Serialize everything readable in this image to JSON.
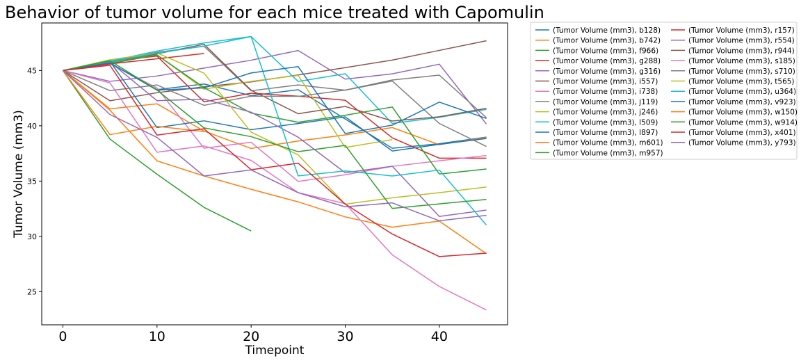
{
  "chart_data": {
    "type": "line",
    "title": "Behavior of tumor volume for each mice treated with Capomulin",
    "xlabel": "Timepoint",
    "ylabel": "Tumor Volume (mm3)",
    "xlim": [
      -2.25,
      47.25
    ],
    "ylim": [
      22.0,
      49.3
    ],
    "xticks": [
      0,
      10,
      20,
      30,
      40
    ],
    "yticks": [
      25,
      30,
      35,
      40,
      45
    ],
    "grid": false,
    "legend_position": "outside-right",
    "x": [
      0,
      5,
      10,
      15,
      20,
      25,
      30,
      35,
      40,
      45
    ],
    "series": [
      {
        "name": "(Tumor Volume (mm3), b128)",
        "color": "#1f77b4",
        "values": [
          45.0,
          45.65,
          43.27,
          43.78,
          42.73,
          43.26,
          40.61,
          37.97,
          38.38,
          38.98
        ]
      },
      {
        "name": "(Tumor Volume (mm3), b742)",
        "color": "#ff7f0e",
        "values": [
          45.0,
          41.53,
          41.99,
          39.52,
          37.95,
          38.62,
          39.17,
          39.84,
          38.29,
          38.94
        ]
      },
      {
        "name": "(Tumor Volume (mm3), f966)",
        "color": "#2ca02c",
        "values": [
          45.0,
          38.8,
          35.62,
          32.62,
          30.49,
          null,
          null,
          null,
          null,
          null
        ]
      },
      {
        "name": "(Tumor Volume (mm3), g288)",
        "color": "#d62728",
        "values": [
          45.0,
          45.84,
          46.3,
          42.17,
          42.95,
          42.68,
          42.31,
          38.91,
          37.07,
          37.07
        ]
      },
      {
        "name": "(Tumor Volume (mm3), g316)",
        "color": "#9467bd",
        "values": [
          45.0,
          44.02,
          44.5,
          45.22,
          45.93,
          46.81,
          44.22,
          44.7,
          45.57,
          40.16
        ]
      },
      {
        "name": "(Tumor Volume (mm3), i557)",
        "color": "#8c564b",
        "values": [
          45.0,
          42.26,
          42.99,
          43.53,
          43.97,
          44.6,
          45.26,
          45.94,
          46.82,
          47.69
        ]
      },
      {
        "name": "(Tumor Volume (mm3), i738)",
        "color": "#e377c2",
        "values": [
          45.0,
          45.6,
          43.42,
          37.97,
          38.51,
          34.97,
          35.57,
          36.33,
          36.84,
          37.31
        ]
      },
      {
        "name": "(Tumor Volume (mm3), j119)",
        "color": "#7f7f7f",
        "values": [
          45.0,
          45.84,
          46.64,
          47.19,
          43.17,
          43.69,
          43.22,
          44.05,
          40.21,
          38.13
        ]
      },
      {
        "name": "(Tumor Volume (mm3), j246)",
        "color": "#bcbd22",
        "values": [
          45.0,
          45.64,
          46.41,
          43.31,
          44.02,
          44.56,
          38.04,
          38.75,
          null,
          null
        ]
      },
      {
        "name": "(Tumor Volume (mm3), l509)",
        "color": "#17becf",
        "values": [
          45.0,
          45.85,
          46.76,
          47.49,
          48.07,
          44.01,
          44.71,
          40.21,
          40.77,
          41.48
        ]
      },
      {
        "name": "(Tumor Volume (mm3), l897)",
        "color": "#1f77b4",
        "values": [
          45.0,
          45.82,
          39.84,
          40.45,
          39.65,
          40.2,
          40.81,
          37.72,
          38.32,
          38.85
        ]
      },
      {
        "name": "(Tumor Volume (mm3), m601)",
        "color": "#ff7f0e",
        "values": [
          45.0,
          41.41,
          36.83,
          35.46,
          34.26,
          33.12,
          31.76,
          30.83,
          31.38,
          28.43
        ]
      },
      {
        "name": "(Tumor Volume (mm3), m957)",
        "color": "#2ca02c",
        "values": [
          45.0,
          45.62,
          46.41,
          43.45,
          41.15,
          40.32,
          40.95,
          41.7,
          35.64,
          36.09
        ]
      },
      {
        "name": "(Tumor Volume (mm3), r157)",
        "color": "#d62728",
        "values": [
          45.0,
          45.6,
          46.06,
          46.54,
          null,
          null,
          null,
          null,
          null,
          null
        ]
      },
      {
        "name": "(Tumor Volume (mm3), r554)",
        "color": "#9467bd",
        "values": [
          45.0,
          45.78,
          42.27,
          42.41,
          41.23,
          38.97,
          35.75,
          36.34,
          31.8,
          32.38
        ]
      },
      {
        "name": "(Tumor Volume (mm3), r944)",
        "color": "#8c564b",
        "values": [
          45.0,
          45.74,
          46.51,
          47.37,
          43.22,
          41.09,
          41.75,
          40.43,
          40.82,
          41.58
        ]
      },
      {
        "name": "(Tumor Volume (mm3), s185)",
        "color": "#e377c2",
        "values": [
          45.0,
          43.88,
          37.61,
          38.18,
          36.87,
          33.95,
          32.96,
          28.33,
          25.47,
          23.34
        ]
      },
      {
        "name": "(Tumor Volume (mm3), s710)",
        "color": "#7f7f7f",
        "values": [
          45.0,
          43.18,
          43.69,
          41.85,
          42.68,
          42.66,
          43.23,
          44.14,
          44.58,
          40.73
        ]
      },
      {
        "name": "(Tumor Volume (mm3), t565)",
        "color": "#bcbd22",
        "values": [
          45.0,
          45.97,
          46.58,
          44.76,
          39.43,
          37.37,
          32.91,
          33.49,
          33.95,
          34.46
        ]
      },
      {
        "name": "(Tumor Volume (mm3), u364)",
        "color": "#17becf",
        "values": [
          45.0,
          45.76,
          46.57,
          47.21,
          48.07,
          35.47,
          35.92,
          35.46,
          36.0,
          31.02
        ]
      },
      {
        "name": "(Tumor Volume (mm3), v923)",
        "color": "#1f77b4",
        "values": [
          45.0,
          45.7,
          43.22,
          43.43,
          44.78,
          45.35,
          39.3,
          40.06,
          42.14,
          40.66
        ]
      },
      {
        "name": "(Tumor Volume (mm3), w150)",
        "color": "#ff7f0e",
        "values": [
          45.0,
          39.2,
          39.95,
          39.48,
          null,
          null,
          null,
          null,
          null,
          null
        ]
      },
      {
        "name": "(Tumor Volume (mm3), w914)",
        "color": "#2ca02c",
        "values": [
          45.0,
          45.89,
          43.23,
          39.81,
          39.02,
          37.66,
          38.23,
          32.53,
          32.94,
          33.34
        ]
      },
      {
        "name": "(Tumor Volume (mm3), x401)",
        "color": "#d62728",
        "values": [
          45.0,
          45.47,
          39.16,
          39.73,
          36.03,
          36.62,
          32.92,
          30.21,
          28.17,
          28.48
        ]
      },
      {
        "name": "(Tumor Volume (mm3), y793)",
        "color": "#9467bd",
        "values": [
          45.0,
          41.02,
          38.95,
          35.46,
          36.01,
          33.95,
          32.67,
          33.03,
          31.41,
          31.9
        ]
      }
    ]
  }
}
